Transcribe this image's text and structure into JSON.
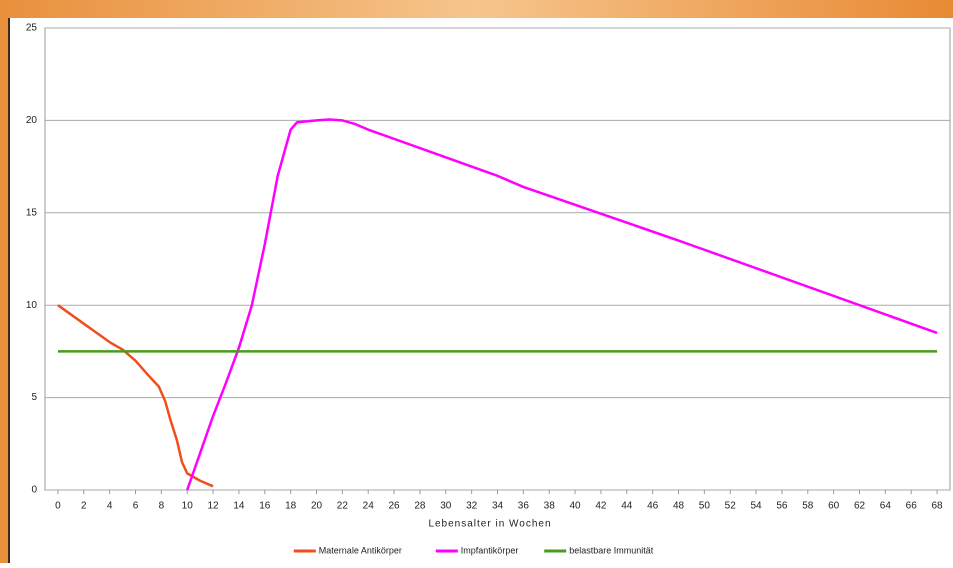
{
  "chart_data": {
    "type": "line",
    "xlabel": "Lebensalter in Wochen",
    "xlim": [
      -1,
      69
    ],
    "ylim": [
      0,
      25
    ],
    "xticks": [
      0,
      2,
      4,
      6,
      8,
      10,
      12,
      14,
      16,
      18,
      20,
      22,
      24,
      26,
      28,
      30,
      32,
      34,
      36,
      38,
      40,
      42,
      44,
      46,
      48,
      50,
      52,
      54,
      56,
      58,
      60,
      62,
      64,
      66,
      68
    ],
    "yticks": [
      0,
      5,
      10,
      15,
      20,
      25
    ],
    "grid": true,
    "legend": "bottom",
    "series": [
      {
        "name": "Maternale Antikörper",
        "color": "#f04e1c",
        "x": [
          0,
          1,
          2,
          3,
          4,
          5,
          6,
          7,
          7.8,
          8.3,
          8.7,
          9.2,
          9.6,
          10,
          11,
          12
        ],
        "values": [
          10,
          9.5,
          9,
          8.5,
          8,
          7.6,
          7,
          6.2,
          5.6,
          4.8,
          3.8,
          2.7,
          1.5,
          0.9,
          0.5,
          0.2
        ]
      },
      {
        "name": "Impfantikörper",
        "color": "#ff00ff",
        "x": [
          10,
          11,
          12,
          13,
          14,
          15,
          16,
          17,
          18,
          18.5,
          20,
          21,
          22,
          23,
          24,
          34,
          36,
          48,
          50,
          68
        ],
        "values": [
          0,
          2,
          4,
          5.8,
          7.7,
          10,
          13.3,
          17,
          19.5,
          19.9,
          20,
          20.05,
          20,
          19.8,
          19.5,
          17,
          16.4,
          13.5,
          13,
          8.5
        ]
      },
      {
        "name": "belastbare Immunität",
        "color": "#4a9a1c",
        "x": [
          0,
          68
        ],
        "values": [
          7.5,
          7.5
        ]
      }
    ]
  }
}
